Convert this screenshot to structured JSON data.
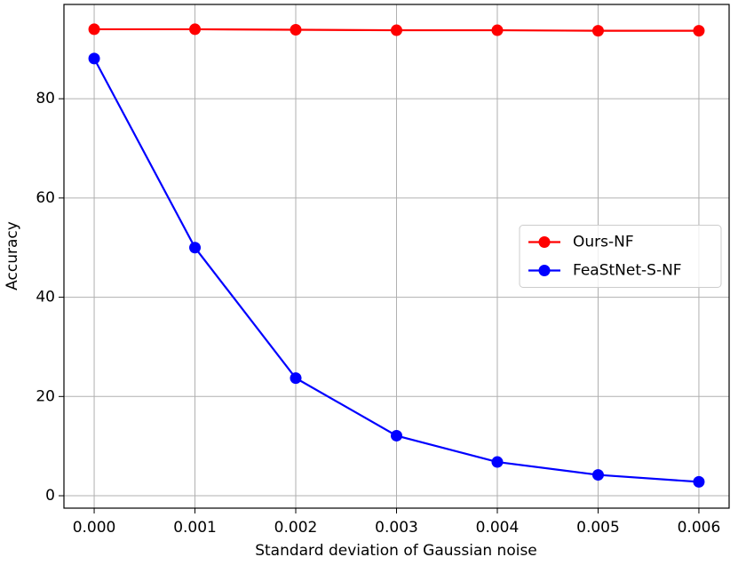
{
  "chart_data": {
    "type": "line",
    "xlabel": "Standard deviation of Gaussian noise",
    "ylabel": "Accuracy",
    "x": [
      0,
      0.001,
      0.002,
      0.003,
      0.004,
      0.005,
      0.006
    ],
    "series": [
      {
        "name": "Ours-NF",
        "color": "#ff0000",
        "values": [
          94.0,
          94.0,
          93.9,
          93.8,
          93.8,
          93.7,
          93.7
        ]
      },
      {
        "name": "FeaStNet-S-NF",
        "color": "#0000ff",
        "values": [
          88.1,
          50.0,
          23.7,
          12.1,
          6.8,
          4.2,
          2.8
        ]
      }
    ],
    "xlim": [
      -0.0003,
      0.0063
    ],
    "xticks": [
      {
        "value": 0,
        "label": "0.000"
      },
      {
        "value": 0.001,
        "label": "0.001"
      },
      {
        "value": 0.002,
        "label": "0.002"
      },
      {
        "value": 0.003,
        "label": "0.003"
      },
      {
        "value": 0.004,
        "label": "0.004"
      },
      {
        "value": 0.005,
        "label": "0.005"
      },
      {
        "value": 0.006,
        "label": "0.006"
      }
    ],
    "ylim": [
      -2.5,
      99
    ],
    "yticks": [
      0,
      20,
      40,
      60,
      80
    ],
    "grid": true,
    "legend": "center right"
  }
}
